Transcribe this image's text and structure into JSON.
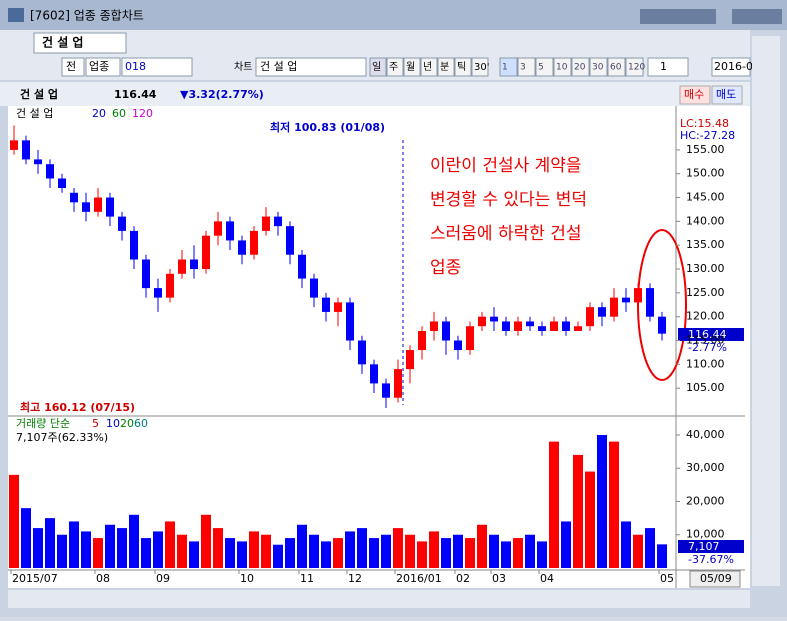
{
  "window": {
    "title": "[7602] 업종 종합차트"
  },
  "toolbar": {
    "tab": "건 설 업",
    "mode": "전",
    "sector": "업종",
    "code": "018",
    "chart_label": "차트",
    "name": "건 설 업",
    "periods": [
      "일",
      "주",
      "월",
      "년",
      "분",
      "틱",
      "30'"
    ],
    "intervals": [
      "1",
      "3",
      "5",
      "10",
      "20",
      "30",
      "60",
      "120"
    ],
    "count": "1",
    "date": "2016-0"
  },
  "quote": {
    "name": "건 설 업",
    "price": "116.44",
    "change": "▼3.32(2.77%)",
    "buy": "매수",
    "sell": "매도"
  },
  "chart_data": [
    {
      "type": "candlestick",
      "title": "건 설 업",
      "ma_labels": [
        "20",
        "60",
        "120"
      ],
      "ma_colors": [
        "#0000cc",
        "#008000",
        "#cc00cc"
      ],
      "low_label": "최저 100.83 (01/08)",
      "high_label": "최고 160.12 (07/15)",
      "annotation": [
        "이란이 건설사 계약을",
        "변경할 수 있다는 변덕",
        "스러움에 하락한 건설",
        "업종"
      ],
      "scale_labels": [
        "LC:15.48",
        "HC:-27.28"
      ],
      "last_price": "116.44",
      "last_change": "-2.77%",
      "up_color": "#ff0000",
      "down_color": "#0000ff",
      "open": [
        155,
        157,
        153,
        152,
        149,
        146,
        144,
        142,
        145,
        141,
        138,
        132,
        126,
        124,
        129,
        132,
        130,
        137,
        140,
        136,
        133,
        138,
        141,
        139,
        133,
        128,
        124,
        121,
        123,
        115,
        110,
        106,
        103,
        109,
        113,
        117,
        119,
        115,
        113,
        118,
        120,
        119,
        117,
        119,
        118,
        117,
        119,
        117,
        118,
        122,
        120,
        124,
        123,
        126,
        120
      ],
      "close": [
        157,
        153,
        152,
        149,
        147,
        144,
        142,
        145,
        141,
        138,
        132,
        126,
        124,
        129,
        132,
        130,
        137,
        140,
        136,
        133,
        138,
        141,
        139,
        133,
        128,
        124,
        121,
        123,
        115,
        110,
        106,
        103,
        109,
        113,
        117,
        119,
        115,
        113,
        118,
        120,
        119,
        117,
        119,
        118,
        117,
        119,
        117,
        118,
        122,
        120,
        124,
        123,
        126,
        120,
        116.44
      ],
      "high": [
        160.12,
        158,
        155,
        153,
        150,
        147,
        146,
        147,
        146,
        142,
        139,
        133,
        128,
        130,
        134,
        135,
        138,
        142,
        141,
        137,
        139,
        143,
        142,
        140,
        134,
        129,
        125,
        124,
        124,
        116,
        111,
        107,
        111,
        114,
        118,
        121,
        120,
        116,
        119,
        121,
        122,
        120,
        120,
        120,
        119,
        120,
        120,
        119,
        123,
        123,
        126,
        126,
        127,
        127,
        121
      ],
      "low": [
        154,
        152,
        150,
        147,
        146,
        142,
        140,
        141,
        139,
        136,
        130,
        124,
        121,
        123,
        128,
        128,
        129,
        135,
        134,
        131,
        132,
        137,
        137,
        131,
        126,
        122,
        119,
        118,
        113,
        108,
        104,
        100.83,
        102,
        106,
        111,
        115,
        112,
        111,
        112,
        117,
        117,
        116,
        116,
        117,
        116,
        117,
        116,
        117,
        117,
        118,
        119,
        121,
        122,
        119,
        115
      ],
      "xlim": [
        -0.5,
        54.5
      ],
      "ylim": [
        100,
        164
      ],
      "yticks": [
        {
          "value": 105,
          "label": "105.00"
        },
        {
          "value": 110,
          "label": "110.00"
        },
        {
          "value": 115,
          "label": "115.00"
        },
        {
          "value": 120,
          "label": "120.00"
        },
        {
          "value": 125,
          "label": "125.00"
        },
        {
          "value": 130,
          "label": "130.00"
        },
        {
          "value": 135,
          "label": "135.00"
        },
        {
          "value": 140,
          "label": "140.00"
        },
        {
          "value": 145,
          "label": "145.00"
        },
        {
          "value": 150,
          "label": "150.00"
        },
        {
          "value": 155,
          "label": "155.00"
        }
      ]
    },
    {
      "type": "bar",
      "title": "거래량 단순",
      "ma_labels": [
        "5",
        "10",
        "20",
        "60"
      ],
      "ma_colors": [
        "#cc0000",
        "#0000cc",
        "#008000",
        "#008080"
      ],
      "info": "7,107주(62.33%)",
      "last_volume": "7,107",
      "last_change": "-37.67%",
      "date_label": "05/09",
      "values": [
        28000,
        18000,
        12000,
        15000,
        10000,
        14000,
        11000,
        9000,
        13000,
        12000,
        16000,
        9000,
        11000,
        14000,
        10000,
        8000,
        16000,
        12000,
        9000,
        8000,
        11000,
        10000,
        7000,
        9000,
        13000,
        10000,
        8000,
        9000,
        11000,
        12000,
        9000,
        10000,
        12000,
        10000,
        8000,
        11000,
        9000,
        10000,
        9000,
        13000,
        10000,
        8000,
        9000,
        10000,
        8000,
        38000,
        14000,
        34000,
        29000,
        40000,
        38000,
        14000,
        10000,
        12000,
        7107
      ],
      "ylim": [
        0,
        43000
      ],
      "yticks": [
        {
          "value": 10000,
          "label": "10,000"
        },
        {
          "value": 20000,
          "label": "20,000"
        },
        {
          "value": 30000,
          "label": "30,000"
        },
        {
          "value": 40000,
          "label": "40,000"
        }
      ],
      "xticks": [
        {
          "value": 0,
          "label": "2015/07"
        },
        {
          "value": 7,
          "label": "08"
        },
        {
          "value": 12,
          "label": "09"
        },
        {
          "value": 19,
          "label": "10"
        },
        {
          "value": 24,
          "label": "11"
        },
        {
          "value": 28,
          "label": "12"
        },
        {
          "value": 32,
          "label": "2016/01"
        },
        {
          "value": 37,
          "label": "02"
        },
        {
          "value": 40,
          "label": "03"
        },
        {
          "value": 44,
          "label": "04"
        },
        {
          "value": 54,
          "label": "05"
        }
      ]
    }
  ]
}
